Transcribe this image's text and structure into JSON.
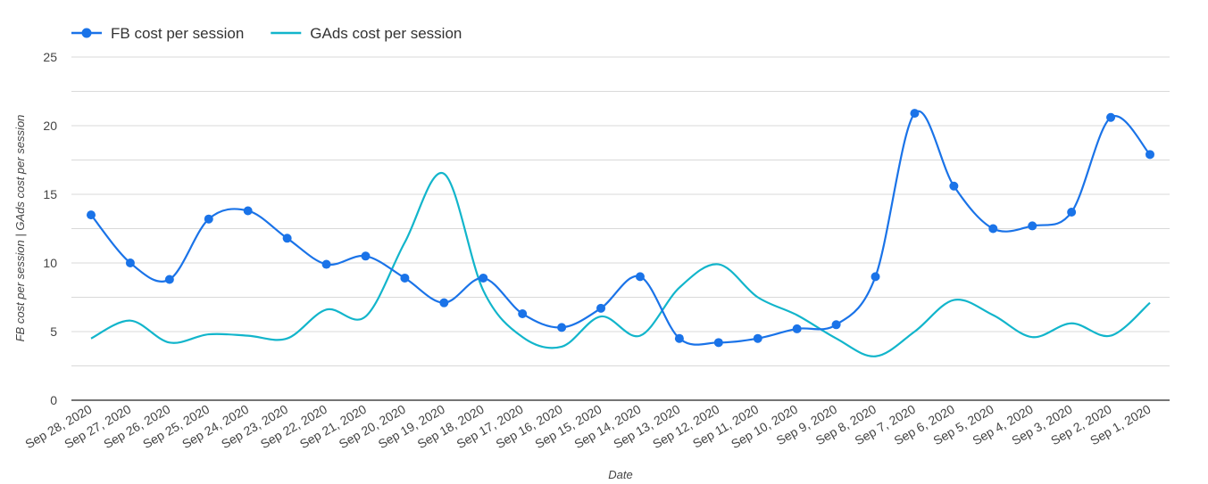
{
  "chart_data": {
    "type": "line",
    "xlabel": "Date",
    "ylabel": "FB cost per session | GAds cost per session",
    "ylim": [
      0,
      25
    ],
    "yticks": [
      0,
      5,
      10,
      15,
      20,
      25
    ],
    "grid": true,
    "legend_position": "top-left",
    "smooth": true,
    "categories": [
      "Sep 28, 2020",
      "Sep 27, 2020",
      "Sep 26, 2020",
      "Sep 25, 2020",
      "Sep 24, 2020",
      "Sep 23, 2020",
      "Sep 22, 2020",
      "Sep 21, 2020",
      "Sep 20, 2020",
      "Sep 19, 2020",
      "Sep 18, 2020",
      "Sep 17, 2020",
      "Sep 16, 2020",
      "Sep 15, 2020",
      "Sep 14, 2020",
      "Sep 13, 2020",
      "Sep 12, 2020",
      "Sep 11, 2020",
      "Sep 10, 2020",
      "Sep 9, 2020",
      "Sep 8, 2020",
      "Sep 7, 2020",
      "Sep 6, 2020",
      "Sep 5, 2020",
      "Sep 4, 2020",
      "Sep 3, 2020",
      "Sep 2, 2020",
      "Sep 1, 2020"
    ],
    "series": [
      {
        "name": "FB cost per session",
        "color": "#1a73e8",
        "markers": true,
        "values": [
          13.5,
          10.0,
          8.8,
          13.2,
          13.8,
          11.8,
          9.9,
          10.5,
          8.9,
          7.1,
          8.9,
          6.3,
          5.3,
          6.7,
          9.0,
          4.5,
          4.2,
          4.5,
          5.2,
          5.5,
          9.0,
          20.9,
          15.6,
          12.5,
          12.7,
          13.7,
          20.6,
          17.9
        ]
      },
      {
        "name": "GAds cost per session",
        "color": "#12b5cb",
        "markers": false,
        "values": [
          4.5,
          5.8,
          4.2,
          4.8,
          4.7,
          4.5,
          6.6,
          6.1,
          11.5,
          16.5,
          8.0,
          4.6,
          3.9,
          6.1,
          4.7,
          8.2,
          9.9,
          7.5,
          6.2,
          4.5,
          3.2,
          5.0,
          7.3,
          6.2,
          4.6,
          5.6,
          4.7,
          7.1
        ]
      }
    ]
  }
}
